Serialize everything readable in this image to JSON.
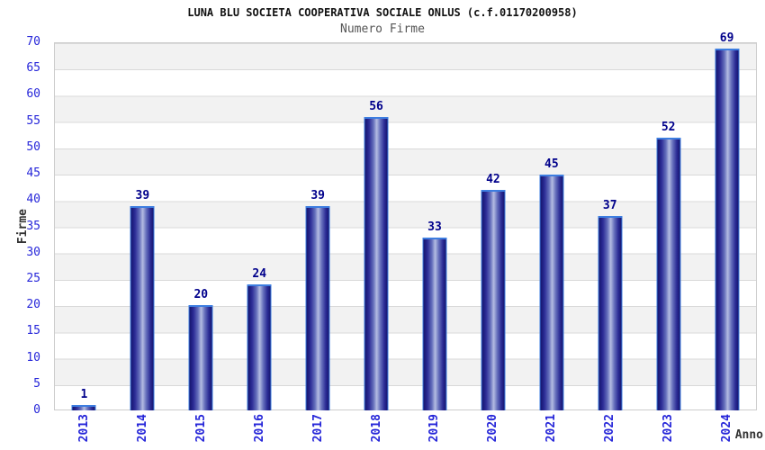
{
  "header": {
    "title": "LUNA BLU SOCIETA COOPERATIVA SOCIALE ONLUS (c.f.01170200958)",
    "subtitle": "Numero Firme"
  },
  "colors": {
    "bar_edge": "#15156e",
    "bar_highlight": "#b4bce2",
    "bar_border": "#3d7de0",
    "tick_text": "#2626d9",
    "value_text": "#00008b",
    "axis_label_text": "#333333",
    "band_gray": "#f2f2f2",
    "band_white": "#ffffff",
    "gridline": "#d9d9d9"
  },
  "chart_data": {
    "type": "bar",
    "title": "LUNA BLU SOCIETA COOPERATIVA SOCIALE ONLUS (c.f.01170200958)",
    "subtitle": "Numero Firme",
    "xlabel": "Anno",
    "ylabel": "Firme",
    "categories": [
      "2013",
      "2014",
      "2015",
      "2016",
      "2017",
      "2018",
      "2019",
      "2020",
      "2021",
      "2022",
      "2023",
      "2024"
    ],
    "values": [
      1,
      39,
      20,
      24,
      39,
      56,
      33,
      42,
      45,
      37,
      52,
      69
    ],
    "ylim": [
      0,
      70
    ],
    "ytick_step": 5,
    "grid": "horizontal alternating bands",
    "legend": "none",
    "bar_value_labels": true,
    "x_tick_rotation_deg": 90
  }
}
